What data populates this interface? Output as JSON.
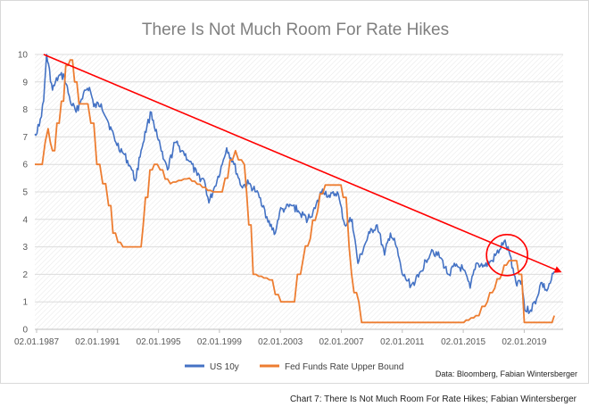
{
  "chart_data": {
    "type": "line",
    "title": "There Is Not Much Room For Rate Hikes",
    "x_tick_labels": [
      "02.01.1987",
      "02.01.1991",
      "02.01.1995",
      "02.01.1999",
      "02.01.2003",
      "02.01.2007",
      "02.01.2011",
      "02.01.2015",
      "02.01.2019"
    ],
    "y_ticks": [
      0,
      1,
      2,
      3,
      4,
      5,
      6,
      7,
      8,
      9,
      10
    ],
    "ylim": [
      0,
      10
    ],
    "xlim": [
      1987.0,
      2022.8
    ],
    "grid": true,
    "legend_position": "bottom",
    "series": [
      {
        "name": "US 10y",
        "color": "#4472c4",
        "x": [
          1987.0,
          1987.3,
          1987.6,
          1987.8,
          1988.2,
          1988.6,
          1989.0,
          1989.4,
          1989.8,
          1990.3,
          1990.7,
          1991.0,
          1991.5,
          1992.0,
          1992.5,
          1993.0,
          1993.5,
          1993.8,
          1994.2,
          1994.6,
          1994.9,
          1995.3,
          1995.7,
          1996.0,
          1996.5,
          1997.0,
          1997.5,
          1998.0,
          1998.5,
          1998.8,
          1999.2,
          1999.7,
          2000.0,
          2000.5,
          2001.0,
          2001.5,
          2002.0,
          2002.5,
          2002.8,
          2003.3,
          2003.6,
          2004.0,
          2004.5,
          2005.0,
          2005.5,
          2006.0,
          2006.5,
          2007.0,
          2007.5,
          2008.0,
          2008.5,
          2008.9,
          2009.3,
          2009.7,
          2010.2,
          2010.7,
          2011.1,
          2011.5,
          2011.9,
          2012.5,
          2013.0,
          2013.5,
          2013.9,
          2014.5,
          2015.0,
          2015.5,
          2016.0,
          2016.5,
          2016.9,
          2017.5,
          2018.0,
          2018.5,
          2018.8,
          2019.2,
          2019.6,
          2020.0,
          2020.2,
          2020.6,
          2021.0,
          2021.3,
          2021.7,
          2022.0,
          2022.2
        ],
        "values": [
          7.1,
          7.4,
          8.3,
          10.0,
          8.7,
          9.2,
          9.2,
          8.3,
          7.9,
          8.6,
          8.8,
          8.1,
          8.2,
          7.5,
          6.8,
          6.4,
          5.9,
          5.4,
          6.5,
          7.4,
          7.9,
          7.0,
          6.2,
          5.8,
          6.8,
          6.5,
          6.1,
          5.6,
          5.4,
          4.6,
          5.2,
          6.0,
          6.6,
          6.0,
          5.2,
          5.3,
          5.0,
          4.5,
          3.9,
          3.5,
          4.3,
          4.4,
          4.5,
          4.2,
          4.0,
          4.4,
          5.1,
          4.8,
          5.0,
          3.8,
          4.0,
          2.4,
          3.0,
          3.5,
          3.8,
          2.7,
          3.5,
          3.0,
          2.0,
          1.6,
          1.9,
          2.5,
          2.9,
          2.6,
          2.0,
          2.3,
          2.2,
          1.5,
          2.4,
          2.3,
          2.5,
          2.9,
          3.2,
          2.7,
          1.7,
          1.8,
          0.7,
          0.7,
          1.1,
          1.7,
          1.4,
          1.8,
          2.1
        ]
      },
      {
        "name": "Fed Funds Rate Upper Bound",
        "color": "#ed7d31",
        "x": [
          1987.0,
          1987.3,
          1987.5,
          1987.7,
          1987.9,
          1988.2,
          1988.5,
          1988.8,
          1989.1,
          1989.4,
          1989.7,
          1990.0,
          1990.4,
          1990.8,
          1991.2,
          1991.6,
          1992.0,
          1992.3,
          1992.8,
          1993.5,
          1994.0,
          1994.2,
          1994.5,
          1994.8,
          1995.1,
          1995.5,
          1996.0,
          1997.3,
          1998.9,
          1999.5,
          1999.9,
          2000.4,
          2001.0,
          2001.2,
          2001.5,
          2001.8,
          2002.9,
          2003.5,
          2004.4,
          2005.0,
          2005.5,
          2006.0,
          2006.5,
          2007.6,
          2007.9,
          2008.1,
          2008.3,
          2008.8,
          2008.96,
          2015.9,
          2016.9,
          2017.5,
          2018.0,
          2018.5,
          2018.96,
          2019.5,
          2019.8,
          2020.17,
          2021.9,
          2022.2
        ],
        "values": [
          6.0,
          6.0,
          6.8,
          7.3,
          6.8,
          6.5,
          7.5,
          8.3,
          9.6,
          9.8,
          9.0,
          8.2,
          8.2,
          7.5,
          6.0,
          5.3,
          4.5,
          3.5,
          3.0,
          3.0,
          3.0,
          3.8,
          4.8,
          5.8,
          6.0,
          5.8,
          5.3,
          5.5,
          5.0,
          5.0,
          5.5,
          6.5,
          6.0,
          5.0,
          3.8,
          2.0,
          1.8,
          1.0,
          1.0,
          2.5,
          3.3,
          4.3,
          5.25,
          5.25,
          4.8,
          3.0,
          2.0,
          1.0,
          0.25,
          0.25,
          0.5,
          1.0,
          1.5,
          2.0,
          2.5,
          2.5,
          2.0,
          0.25,
          0.25,
          0.5
        ]
      }
    ],
    "annotations": {
      "trend_arrow": {
        "from": [
          1987.6,
          10.0
        ],
        "to": [
          2022.6,
          2.1
        ],
        "color": "#ff0000"
      },
      "highlight_circle": {
        "center": [
          2019.0,
          2.7
        ],
        "color": "#ff0000"
      }
    }
  },
  "legend": [
    {
      "label": "US 10y",
      "color": "#4472c4"
    },
    {
      "label": "Fed Funds Rate Upper Bound",
      "color": "#ed7d31"
    }
  ],
  "source_note": "Data: Bloomberg, Fabian Wintersberger",
  "caption": "Chart 7: There Is Not Much Room For Rate Hikes; Fabian Wintersberger"
}
